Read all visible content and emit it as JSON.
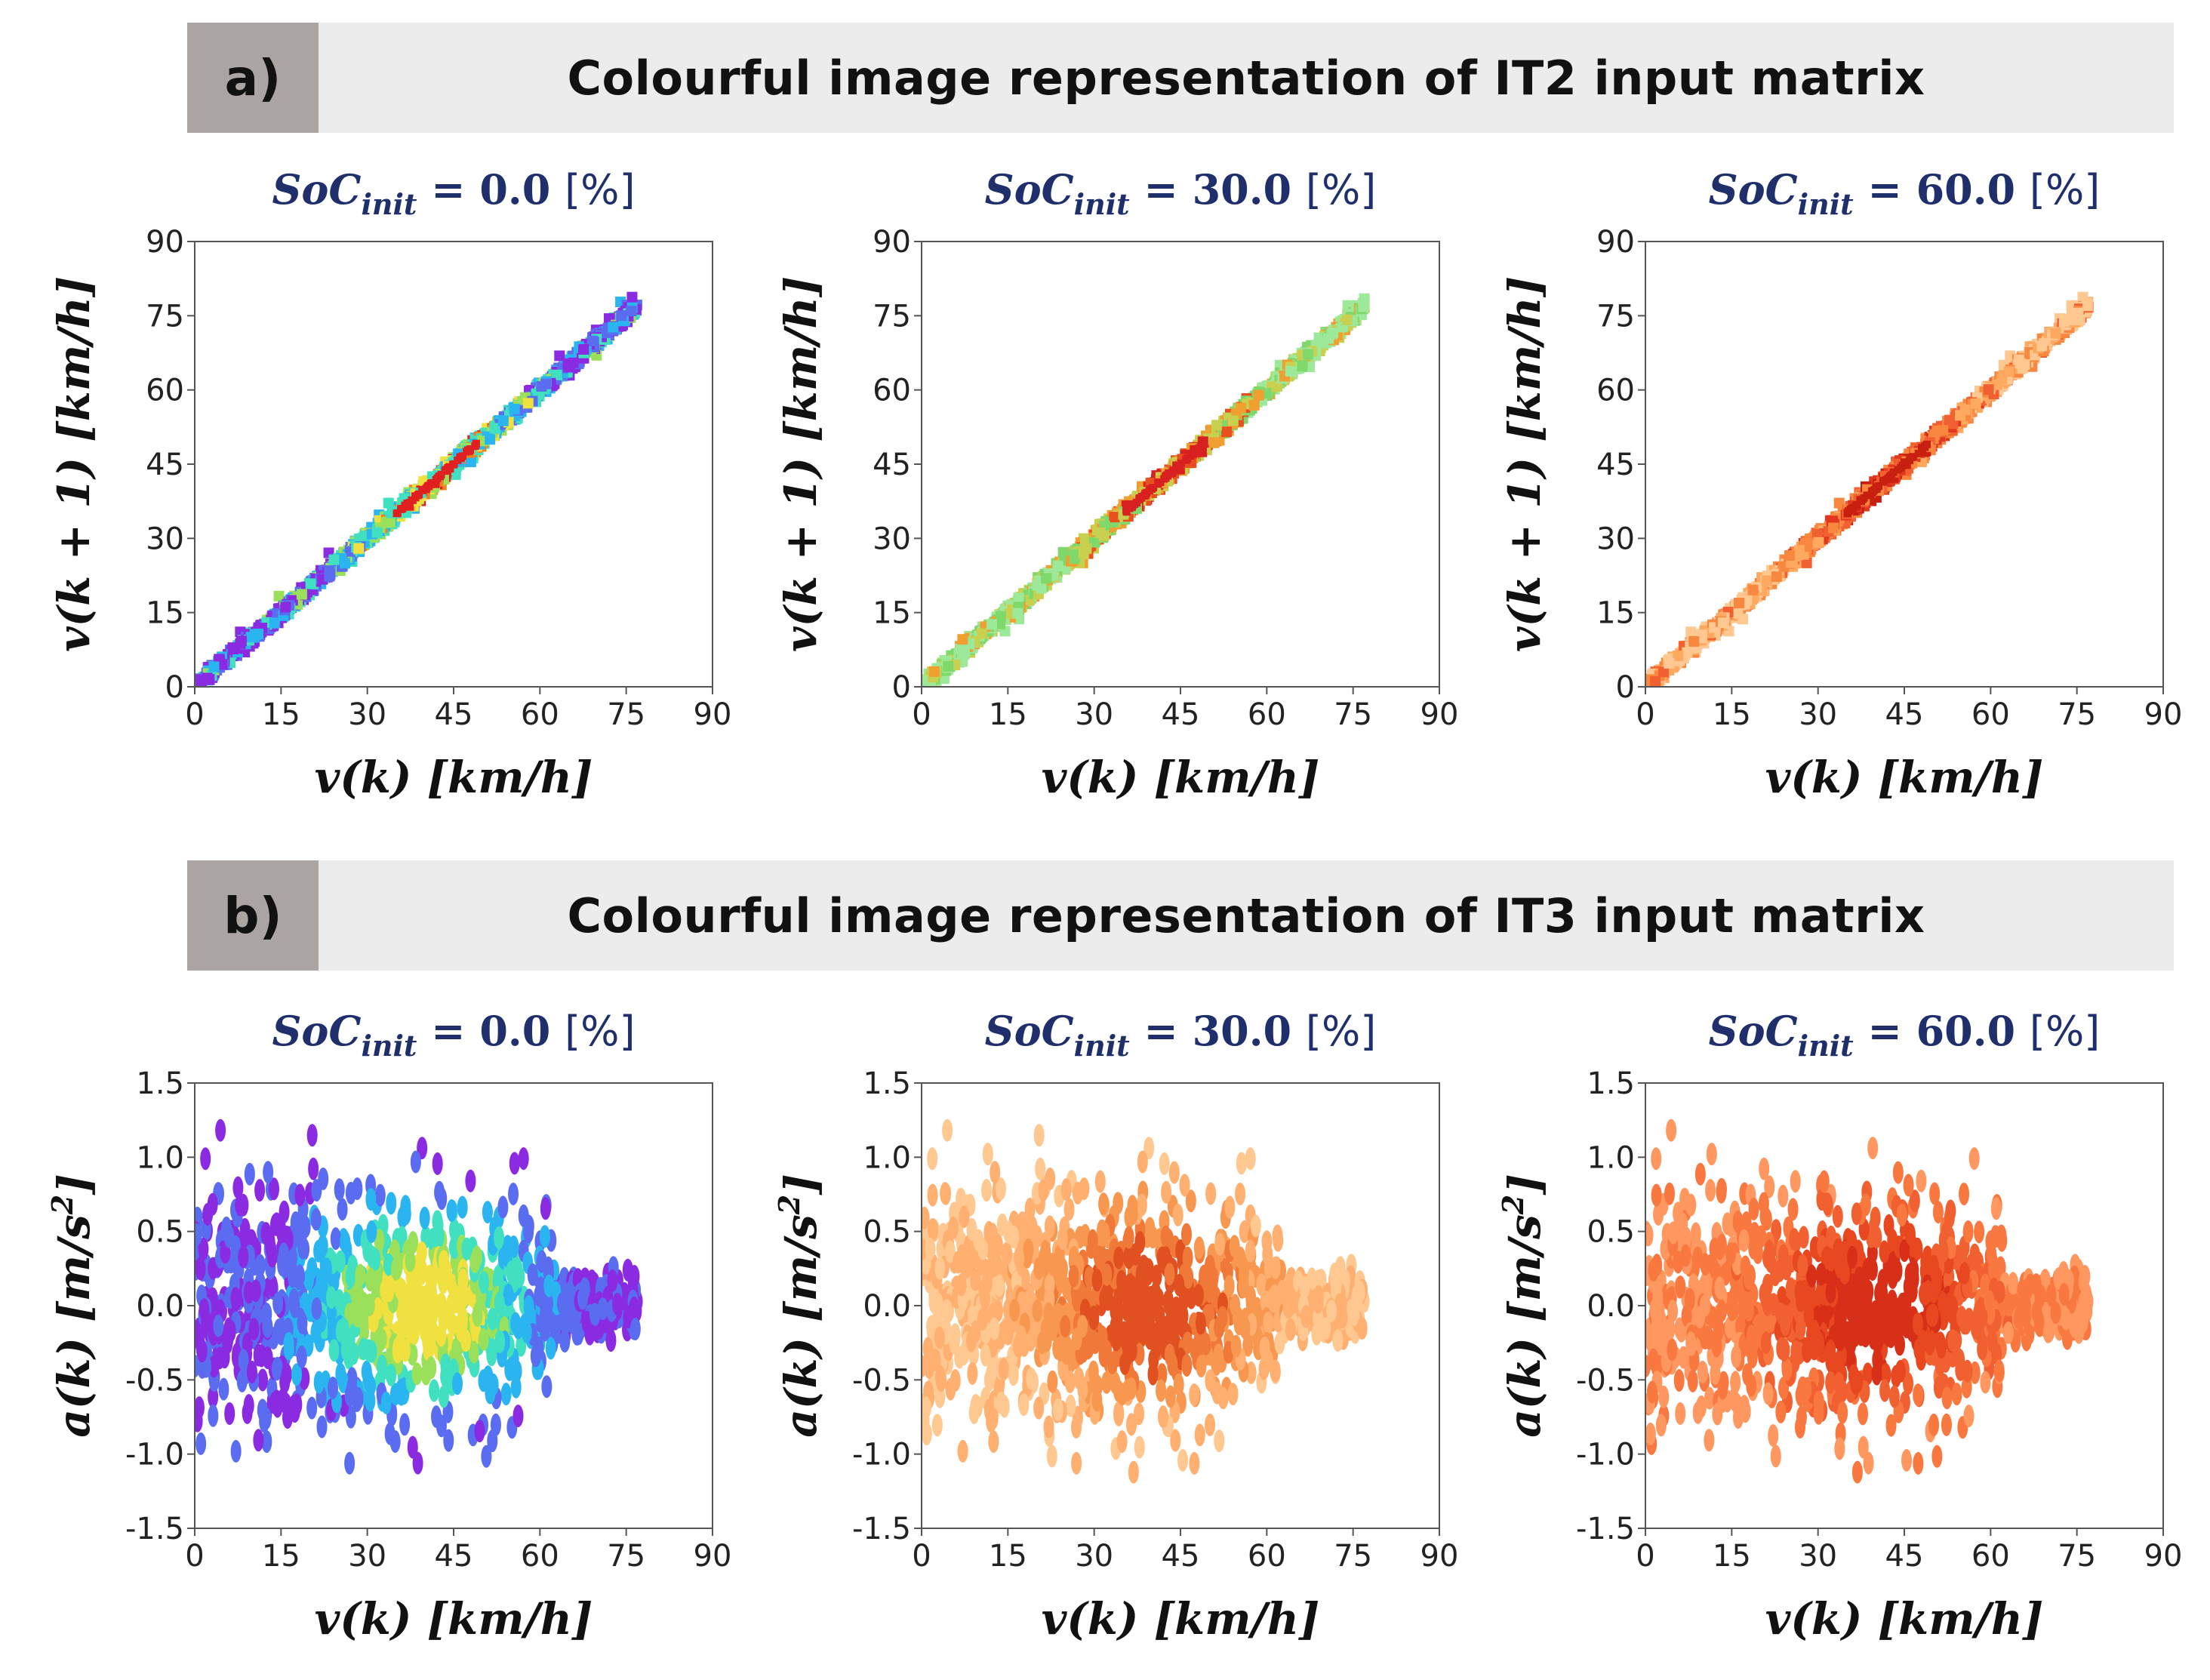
{
  "sections": [
    {
      "tag": "a)",
      "title": "Colourful image representation of IT2 input matrix"
    },
    {
      "tag": "b)",
      "title": "Colourful image representation of IT3 input matrix"
    }
  ],
  "panel_title_prefix": "SoC",
  "panel_title_subscript": "init",
  "panel_title_unit": "[%]",
  "chart_data": [
    {
      "type": "heatmap",
      "section": "a)",
      "title_value": "= 0.0",
      "xlabel": "v(k) [km/h]",
      "ylabel": "v(k + 1) [km/h]",
      "xlim": [
        0,
        90
      ],
      "ylim": [
        0,
        90
      ],
      "xticks": [
        "0",
        "15",
        "30",
        "45",
        "60",
        "75",
        "90"
      ],
      "yticks": [
        "0",
        "15",
        "30",
        "45",
        "60",
        "75",
        "90"
      ],
      "colormap": "rainbow",
      "colors": [
        "#8a2be2",
        "#5a6cf0",
        "#2bb5f0",
        "#40e0c0",
        "#9be05a",
        "#f0e040",
        "#f08020",
        "#e02020"
      ],
      "data_range": [
        0,
        77
      ],
      "spread": 2.2
    },
    {
      "type": "heatmap",
      "section": "a)",
      "title_value": "= 30.0",
      "xlabel": "v(k) [km/h]",
      "ylabel": "v(k + 1) [km/h]",
      "xlim": [
        0,
        90
      ],
      "ylim": [
        0,
        90
      ],
      "xticks": [
        "0",
        "15",
        "30",
        "45",
        "60",
        "75",
        "90"
      ],
      "yticks": [
        "0",
        "15",
        "30",
        "45",
        "60",
        "75",
        "90"
      ],
      "colormap": "green-red",
      "colors": [
        "#9ee89a",
        "#7fd86a",
        "#c8d050",
        "#f0a030",
        "#e85020",
        "#d82020"
      ],
      "data_range": [
        0,
        77
      ],
      "spread": 2.2
    },
    {
      "type": "heatmap",
      "section": "a)",
      "title_value": "= 60.0",
      "xlabel": "v(k) [km/h]",
      "ylabel": "v(k + 1) [km/h]",
      "xlim": [
        0,
        90
      ],
      "ylim": [
        0,
        90
      ],
      "xticks": [
        "0",
        "15",
        "30",
        "45",
        "60",
        "75",
        "90"
      ],
      "yticks": [
        "0",
        "15",
        "30",
        "45",
        "60",
        "75",
        "90"
      ],
      "colormap": "oranges",
      "colors": [
        "#ffc890",
        "#ffa860",
        "#f88840",
        "#f06030",
        "#e03820",
        "#c82010"
      ],
      "data_range": [
        0,
        77
      ],
      "spread": 2.2
    },
    {
      "type": "heatmap",
      "section": "b)",
      "title_value": "= 0.0",
      "xlabel": "v(k) [km/h]",
      "ylabel": "a(k) [m/s2]",
      "xlim": [
        0,
        90
      ],
      "ylim": [
        -1.5,
        1.5
      ],
      "xticks": [
        "0",
        "15",
        "30",
        "45",
        "60",
        "75",
        "90"
      ],
      "yticks": [
        "-1.5",
        "-1.0",
        "-0.5",
        "0.0",
        "0.5",
        "1.0",
        "1.5"
      ],
      "colormap": "rainbow",
      "colors": [
        "#8a2be2",
        "#5a6cf0",
        "#2bb5f0",
        "#40e0c0",
        "#9be05a",
        "#f0e040"
      ],
      "data_range": [
        0,
        77
      ]
    },
    {
      "type": "heatmap",
      "section": "b)",
      "title_value": "= 30.0",
      "xlabel": "v(k) [km/h]",
      "ylabel": "a(k) [m/s2]",
      "xlim": [
        0,
        90
      ],
      "ylim": [
        -1.5,
        1.5
      ],
      "xticks": [
        "0",
        "15",
        "30",
        "45",
        "60",
        "75",
        "90"
      ],
      "yticks": [
        "-1.5",
        "-1.0",
        "-0.5",
        "0.0",
        "0.5",
        "1.0",
        "1.5"
      ],
      "colormap": "oranges",
      "colors": [
        "#ffc890",
        "#ffb070",
        "#f89850",
        "#f07838",
        "#e05020"
      ],
      "data_range": [
        0,
        77
      ]
    },
    {
      "type": "heatmap",
      "section": "b)",
      "title_value": "= 60.0",
      "xlabel": "v(k) [km/h]",
      "ylabel": "a(k) [m/s2]",
      "xlim": [
        0,
        90
      ],
      "ylim": [
        -1.5,
        1.5
      ],
      "xticks": [
        "0",
        "15",
        "30",
        "45",
        "60",
        "75",
        "90"
      ],
      "yticks": [
        "-1.5",
        "-1.0",
        "-0.5",
        "0.0",
        "0.5",
        "1.0",
        "1.5"
      ],
      "colormap": "reds",
      "colors": [
        "#ff9860",
        "#f87840",
        "#f06030",
        "#e84820",
        "#d83018"
      ],
      "data_range": [
        0,
        77
      ]
    }
  ]
}
